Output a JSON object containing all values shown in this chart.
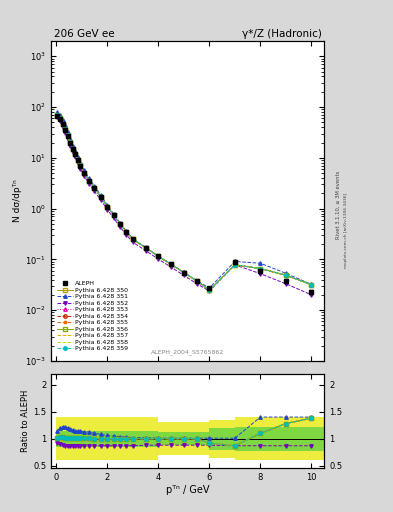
{
  "title_left": "206 GeV ee",
  "title_right": "γ*/Z (Hadronic)",
  "ylabel_main": "N dσ/dpᵀⁿ",
  "ylabel_ratio": "Ratio to ALEPH",
  "xlabel": "pᵀⁿ / GeV",
  "rivet_label": "Rivet 3.1.10, ≥ 3M events",
  "mcplots_label": "mcplots.cern.ch [arXiv:1306.3436]",
  "analysis_label": "ALEPH_2004_S5765862",
  "x_aleph": [
    0.05,
    0.15,
    0.25,
    0.35,
    0.45,
    0.55,
    0.65,
    0.75,
    0.85,
    0.95,
    1.1,
    1.3,
    1.5,
    1.75,
    2.0,
    2.25,
    2.5,
    2.75,
    3.0,
    3.5,
    4.0,
    4.5,
    5.0,
    5.5,
    6.0,
    7.0,
    8.0,
    9.0,
    10.0
  ],
  "y_aleph": [
    68.0,
    58.0,
    46.0,
    36.0,
    27.0,
    20.0,
    15.0,
    12.0,
    9.0,
    7.0,
    5.0,
    3.5,
    2.5,
    1.7,
    1.1,
    0.75,
    0.5,
    0.35,
    0.25,
    0.17,
    0.115,
    0.08,
    0.055,
    0.038,
    0.027,
    0.09,
    0.06,
    0.038,
    0.023
  ],
  "y_aleph_err": [
    3.0,
    2.5,
    2.0,
    1.5,
    1.2,
    0.9,
    0.7,
    0.5,
    0.4,
    0.3,
    0.2,
    0.15,
    0.1,
    0.07,
    0.05,
    0.03,
    0.02,
    0.015,
    0.01,
    0.008,
    0.005,
    0.004,
    0.003,
    0.002,
    0.0015,
    0.008,
    0.005,
    0.003,
    0.002
  ],
  "x_pythia": [
    0.05,
    0.15,
    0.25,
    0.35,
    0.45,
    0.55,
    0.65,
    0.75,
    0.85,
    0.95,
    1.1,
    1.3,
    1.5,
    1.75,
    2.0,
    2.25,
    2.5,
    2.75,
    3.0,
    3.5,
    4.0,
    4.5,
    5.0,
    5.5,
    6.0,
    7.0,
    8.0,
    9.0,
    10.0
  ],
  "series": [
    {
      "label": "Pythia 6.428 350",
      "color": "#b8a000",
      "style": "-",
      "marker": "s",
      "mfc": "none",
      "ratio_y": [
        1.02,
        1.03,
        1.03,
        1.02,
        1.02,
        1.02,
        1.01,
        1.01,
        1.01,
        1.01,
        1.01,
        1.01,
        1.0,
        1.0,
        1.0,
        1.0,
        1.0,
        1.0,
        1.0,
        1.0,
        1.0,
        1.0,
        1.0,
        1.0,
        0.92,
        0.87,
        1.1,
        1.28,
        1.38
      ]
    },
    {
      "label": "Pythia 6.428 351",
      "color": "#2244cc",
      "style": "--",
      "marker": "^",
      "mfc": "#2244cc",
      "ratio_y": [
        1.15,
        1.2,
        1.22,
        1.22,
        1.2,
        1.18,
        1.16,
        1.15,
        1.14,
        1.14,
        1.13,
        1.12,
        1.1,
        1.08,
        1.06,
        1.05,
        1.04,
        1.03,
        1.02,
        1.02,
        1.01,
        1.01,
        1.01,
        1.01,
        1.01,
        1.01,
        1.4,
        1.4,
        1.4
      ]
    },
    {
      "label": "Pythia 6.428 352",
      "color": "#7700bb",
      "style": "--",
      "marker": "v",
      "mfc": "#7700bb",
      "ratio_y": [
        0.92,
        0.9,
        0.88,
        0.87,
        0.86,
        0.86,
        0.86,
        0.87,
        0.87,
        0.87,
        0.87,
        0.87,
        0.87,
        0.87,
        0.87,
        0.87,
        0.87,
        0.87,
        0.87,
        0.88,
        0.88,
        0.88,
        0.88,
        0.88,
        0.88,
        0.87,
        0.87,
        0.87,
        0.87
      ]
    },
    {
      "label": "Pythia 6.428 353",
      "color": "#ee00aa",
      "style": ":",
      "marker": "^",
      "mfc": "none",
      "ratio_y": [
        1.02,
        1.03,
        1.03,
        1.02,
        1.02,
        1.02,
        1.01,
        1.01,
        1.01,
        1.01,
        1.01,
        1.01,
        1.0,
        1.0,
        1.0,
        1.0,
        1.0,
        1.0,
        1.0,
        1.0,
        1.0,
        1.0,
        1.0,
        1.0,
        0.92,
        0.87,
        1.1,
        1.28,
        1.38
      ]
    },
    {
      "label": "Pythia 6.428 354",
      "color": "#cc2200",
      "style": "--",
      "marker": "o",
      "mfc": "none",
      "ratio_y": [
        1.02,
        1.03,
        1.03,
        1.02,
        1.02,
        1.02,
        1.01,
        1.01,
        1.01,
        1.01,
        1.01,
        1.01,
        1.0,
        1.0,
        1.0,
        1.0,
        1.0,
        1.0,
        1.0,
        1.0,
        1.0,
        1.0,
        1.0,
        1.0,
        0.92,
        0.87,
        1.1,
        1.28,
        1.38
      ]
    },
    {
      "label": "Pythia 6.428 355",
      "color": "#ff6600",
      "style": "--",
      "marker": "*",
      "mfc": "#ff6600",
      "ratio_y": [
        1.02,
        1.03,
        1.03,
        1.02,
        1.02,
        1.02,
        1.01,
        1.01,
        1.01,
        1.01,
        1.01,
        1.01,
        1.0,
        1.0,
        1.0,
        1.0,
        1.0,
        1.0,
        1.0,
        1.0,
        1.0,
        1.0,
        1.0,
        1.0,
        0.92,
        0.87,
        1.1,
        1.28,
        1.38
      ]
    },
    {
      "label": "Pythia 6.428 356",
      "color": "#88aa00",
      "style": "-",
      "marker": "s",
      "mfc": "none",
      "ratio_y": [
        1.02,
        1.03,
        1.03,
        1.02,
        1.02,
        1.02,
        1.01,
        1.01,
        1.01,
        1.01,
        1.01,
        1.01,
        1.0,
        1.0,
        1.0,
        1.0,
        1.0,
        1.0,
        1.0,
        1.0,
        1.0,
        1.0,
        1.0,
        1.0,
        0.92,
        0.87,
        1.1,
        1.28,
        1.38
      ]
    },
    {
      "label": "Pythia 6.428 357",
      "color": "#ddaa00",
      "style": "--",
      "marker": null,
      "mfc": "none",
      "ratio_y": [
        1.02,
        1.03,
        1.03,
        1.02,
        1.02,
        1.02,
        1.01,
        1.01,
        1.01,
        1.01,
        1.01,
        1.01,
        1.0,
        1.0,
        1.0,
        1.0,
        1.0,
        1.0,
        1.0,
        1.0,
        1.0,
        1.0,
        1.0,
        1.0,
        0.92,
        0.87,
        1.1,
        1.28,
        1.38
      ]
    },
    {
      "label": "Pythia 6.428 358",
      "color": "#ccdd00",
      "style": "--",
      "marker": null,
      "mfc": "none",
      "ratio_y": [
        1.02,
        1.03,
        1.03,
        1.02,
        1.02,
        1.02,
        1.01,
        1.01,
        1.01,
        1.01,
        1.01,
        1.01,
        1.0,
        1.0,
        1.0,
        1.0,
        1.0,
        1.0,
        1.0,
        1.0,
        1.0,
        1.0,
        1.0,
        1.0,
        0.92,
        0.87,
        1.1,
        1.28,
        1.38
      ]
    },
    {
      "label": "Pythia 6.428 359",
      "color": "#00bbbb",
      "style": "--",
      "marker": "o",
      "mfc": "#00bbbb",
      "ratio_y": [
        1.02,
        1.03,
        1.03,
        1.02,
        1.02,
        1.02,
        1.01,
        1.01,
        1.01,
        1.01,
        1.01,
        1.01,
        1.0,
        1.0,
        1.0,
        1.0,
        1.0,
        1.0,
        1.0,
        1.0,
        1.0,
        1.0,
        1.0,
        1.0,
        0.92,
        0.87,
        1.1,
        1.28,
        1.38
      ]
    }
  ],
  "ylim_main": [
    0.001,
    2000
  ],
  "ylim_ratio": [
    0.45,
    2.2
  ],
  "xlim": [
    -0.2,
    10.5
  ],
  "ratio_yticks": [
    0.5,
    1.0,
    1.5,
    2.0
  ],
  "ratio_ytick_labels": [
    "0.5",
    "1",
    "1.5",
    "2"
  ],
  "main_xticks": [
    0,
    2,
    4,
    6,
    8,
    10
  ],
  "yellow_band": {
    "x": [
      0,
      4.0,
      4.0,
      6.0,
      6.0,
      7.0,
      7.0,
      10.5
    ],
    "lo": [
      0.6,
      0.6,
      0.7,
      0.7,
      0.65,
      0.65,
      0.6,
      0.6
    ],
    "hi": [
      1.4,
      1.4,
      1.3,
      1.3,
      1.35,
      1.35,
      1.4,
      1.4
    ]
  },
  "green_band": {
    "x": [
      0,
      4.0,
      4.0,
      6.0,
      6.0,
      7.0,
      7.0,
      10.5
    ],
    "lo": [
      0.85,
      0.85,
      0.88,
      0.88,
      0.8,
      0.8,
      0.78,
      0.78
    ],
    "hi": [
      1.15,
      1.15,
      1.12,
      1.12,
      1.2,
      1.2,
      1.22,
      1.22
    ]
  }
}
